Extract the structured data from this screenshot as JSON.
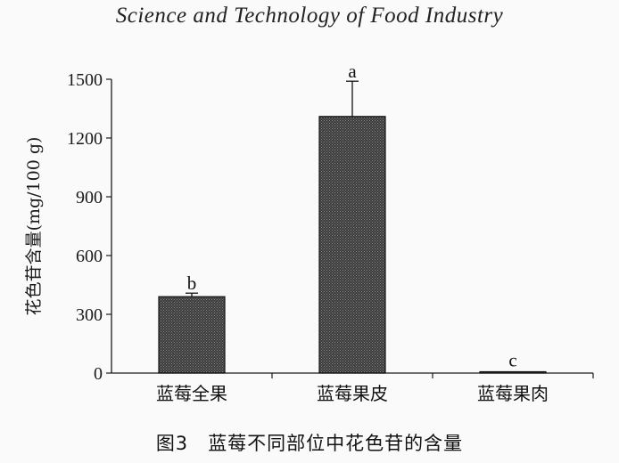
{
  "header": {
    "journal_title": "Science and Technology of Food Industry"
  },
  "caption": {
    "figure_number": "图3",
    "title": "蓝莓不同部位中花色苷的含量"
  },
  "chart_data": {
    "type": "bar",
    "title": "",
    "xlabel": "",
    "ylabel": "花色苷含量(mg/100 g)",
    "ylim": [
      0,
      1500
    ],
    "yticks": [
      0,
      300,
      600,
      900,
      1200,
      1500
    ],
    "grid": false,
    "categories": [
      "蓝莓全果",
      "蓝莓果皮",
      "蓝莓果肉"
    ],
    "values": [
      390,
      1310,
      5
    ],
    "errors": [
      18,
      180,
      0
    ],
    "significance_labels": [
      "b",
      "a",
      "c"
    ]
  },
  "colors": {
    "bar_fill": "#3a3a3a",
    "bar_pattern": "#8a8a8a",
    "axis": "#1a1a1a"
  }
}
